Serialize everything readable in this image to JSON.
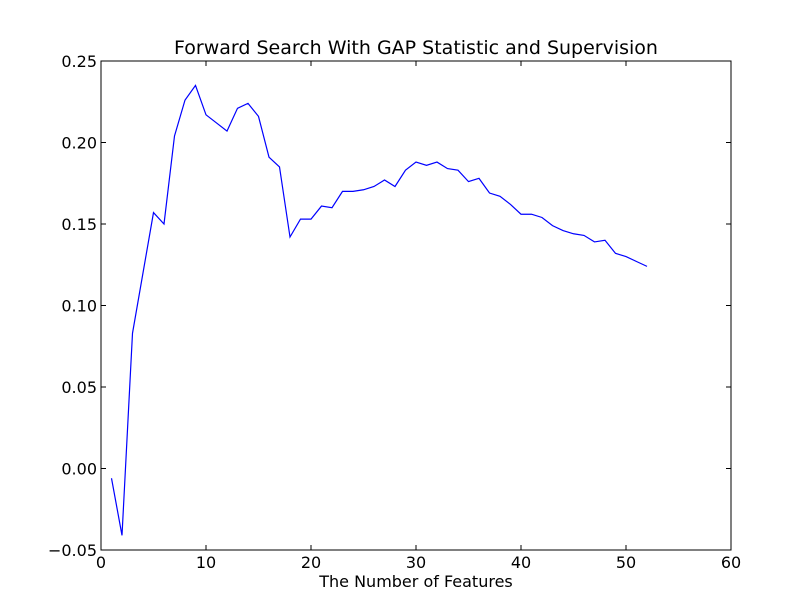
{
  "chart_data": {
    "type": "line",
    "title": "Forward Search With GAP Statistic and Supervision",
    "xlabel": "The Number of Features",
    "ylabel": "",
    "xlim": [
      0,
      60
    ],
    "ylim": [
      -0.05,
      0.25
    ],
    "xticks": [
      0,
      10,
      20,
      30,
      40,
      50,
      60
    ],
    "yticks": [
      -0.05,
      0.0,
      0.05,
      0.1,
      0.15,
      0.2,
      0.25
    ],
    "xtick_labels": [
      "0",
      "10",
      "20",
      "30",
      "40",
      "50",
      "60"
    ],
    "ytick_labels": [
      "−0.05",
      "0.00",
      "0.05",
      "0.10",
      "0.15",
      "0.20",
      "0.25"
    ],
    "grid": false,
    "legend": "none",
    "series": [
      {
        "color": "#0000ff",
        "x": [
          1,
          2,
          3,
          4,
          5,
          6,
          7,
          8,
          9,
          10,
          11,
          12,
          13,
          14,
          15,
          16,
          17,
          18,
          19,
          20,
          21,
          22,
          23,
          24,
          25,
          26,
          27,
          28,
          29,
          30,
          31,
          32,
          33,
          34,
          35,
          36,
          37,
          38,
          39,
          40,
          41,
          42,
          43,
          44,
          45,
          46,
          47,
          48,
          49,
          50,
          51,
          52
        ],
        "values": [
          -0.006,
          -0.041,
          0.083,
          0.12,
          0.157,
          0.15,
          0.204,
          0.226,
          0.235,
          0.217,
          0.212,
          0.207,
          0.221,
          0.224,
          0.216,
          0.191,
          0.185,
          0.142,
          0.153,
          0.153,
          0.161,
          0.16,
          0.17,
          0.17,
          0.171,
          0.173,
          0.177,
          0.173,
          0.183,
          0.188,
          0.186,
          0.188,
          0.184,
          0.183,
          0.176,
          0.178,
          0.169,
          0.167,
          0.162,
          0.156,
          0.156,
          0.154,
          0.149,
          0.146,
          0.144,
          0.143,
          0.139,
          0.14,
          0.132,
          0.13,
          0.127,
          0.124
        ]
      }
    ]
  }
}
